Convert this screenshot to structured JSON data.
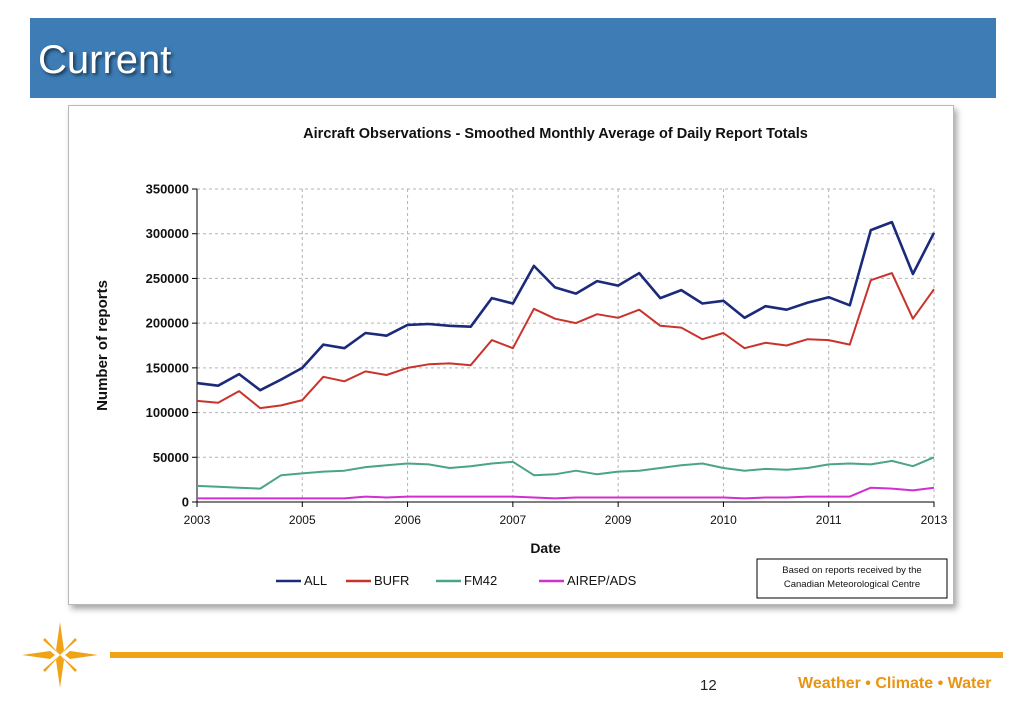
{
  "slide": {
    "title": "Current",
    "page_number": "12",
    "tagline": "Weather • Climate • Water"
  },
  "colors": {
    "title_bar": "#3d7cb5",
    "accent": "#f1a318",
    "ALL": "#1b2a7a",
    "BUFR": "#c8342c",
    "FM42": "#4aa582",
    "AIREP/ADS": "#d030cf"
  },
  "chart_data": {
    "type": "line",
    "title": "Aircraft Observations - Smoothed Monthly  Average of Daily Report Totals",
    "xlabel": "Date",
    "ylabel": "Number of reports",
    "ylim": [
      0,
      350000
    ],
    "yticks": [
      "0",
      "50000",
      "100000",
      "150000",
      "200000",
      "250000",
      "300000",
      "350000"
    ],
    "xticks": [
      "2003",
      "2005",
      "2006",
      "2007",
      "2009",
      "2010",
      "2011",
      "2013"
    ],
    "grid": true,
    "legend_position": "bottom",
    "annotation": [
      "Based on reports received by the",
      "Canadian Meteorological Centre"
    ],
    "x": [
      0,
      0.2,
      0.4,
      0.6,
      0.8,
      1.0,
      1.2,
      1.4,
      1.6,
      1.8,
      2.0,
      2.2,
      2.4,
      2.6,
      2.8,
      3.0,
      3.2,
      3.4,
      3.6,
      3.8,
      4.0,
      4.2,
      4.4,
      4.6,
      4.8,
      5.0,
      5.2,
      5.4,
      5.6,
      5.8,
      6.0,
      6.2,
      6.4,
      6.6,
      6.8,
      7.0
    ],
    "series": [
      {
        "name": "ALL",
        "values": [
          133000,
          130000,
          143000,
          125000,
          137000,
          150000,
          176000,
          172000,
          189000,
          186000,
          198000,
          199000,
          197000,
          196000,
          228000,
          222000,
          264000,
          240000,
          233000,
          247000,
          242000,
          256000,
          228000,
          237000,
          222000,
          225000,
          206000,
          219000,
          215000,
          223000,
          229000,
          220000,
          304000,
          313000,
          255000,
          301000
        ]
      },
      {
        "name": "BUFR",
        "values": [
          113000,
          111000,
          124000,
          105000,
          108000,
          114000,
          140000,
          135000,
          146000,
          142000,
          150000,
          154000,
          155000,
          153000,
          181000,
          172000,
          216000,
          205000,
          200000,
          210000,
          206000,
          215000,
          197000,
          195000,
          182000,
          189000,
          172000,
          178000,
          175000,
          182000,
          181000,
          176000,
          248000,
          256000,
          205000,
          238000
        ]
      },
      {
        "name": "FM42",
        "values": [
          18000,
          17000,
          16000,
          15000,
          30000,
          32000,
          34000,
          35000,
          39000,
          41000,
          43000,
          42000,
          38000,
          40000,
          43000,
          45000,
          30000,
          31000,
          35000,
          31000,
          34000,
          35000,
          38000,
          41000,
          43000,
          38000,
          35000,
          37000,
          36000,
          38000,
          42000,
          43000,
          42000,
          46000,
          40000,
          50000
        ]
      },
      {
        "name": "AIREP/ADS",
        "values": [
          4000,
          4000,
          4000,
          4000,
          4000,
          4000,
          4000,
          4000,
          6000,
          5000,
          6000,
          6000,
          6000,
          6000,
          6000,
          6000,
          5000,
          4000,
          5000,
          5000,
          5000,
          5000,
          5000,
          5000,
          5000,
          5000,
          4000,
          5000,
          5000,
          6000,
          6000,
          6000,
          16000,
          15000,
          13000,
          16000
        ]
      }
    ]
  }
}
